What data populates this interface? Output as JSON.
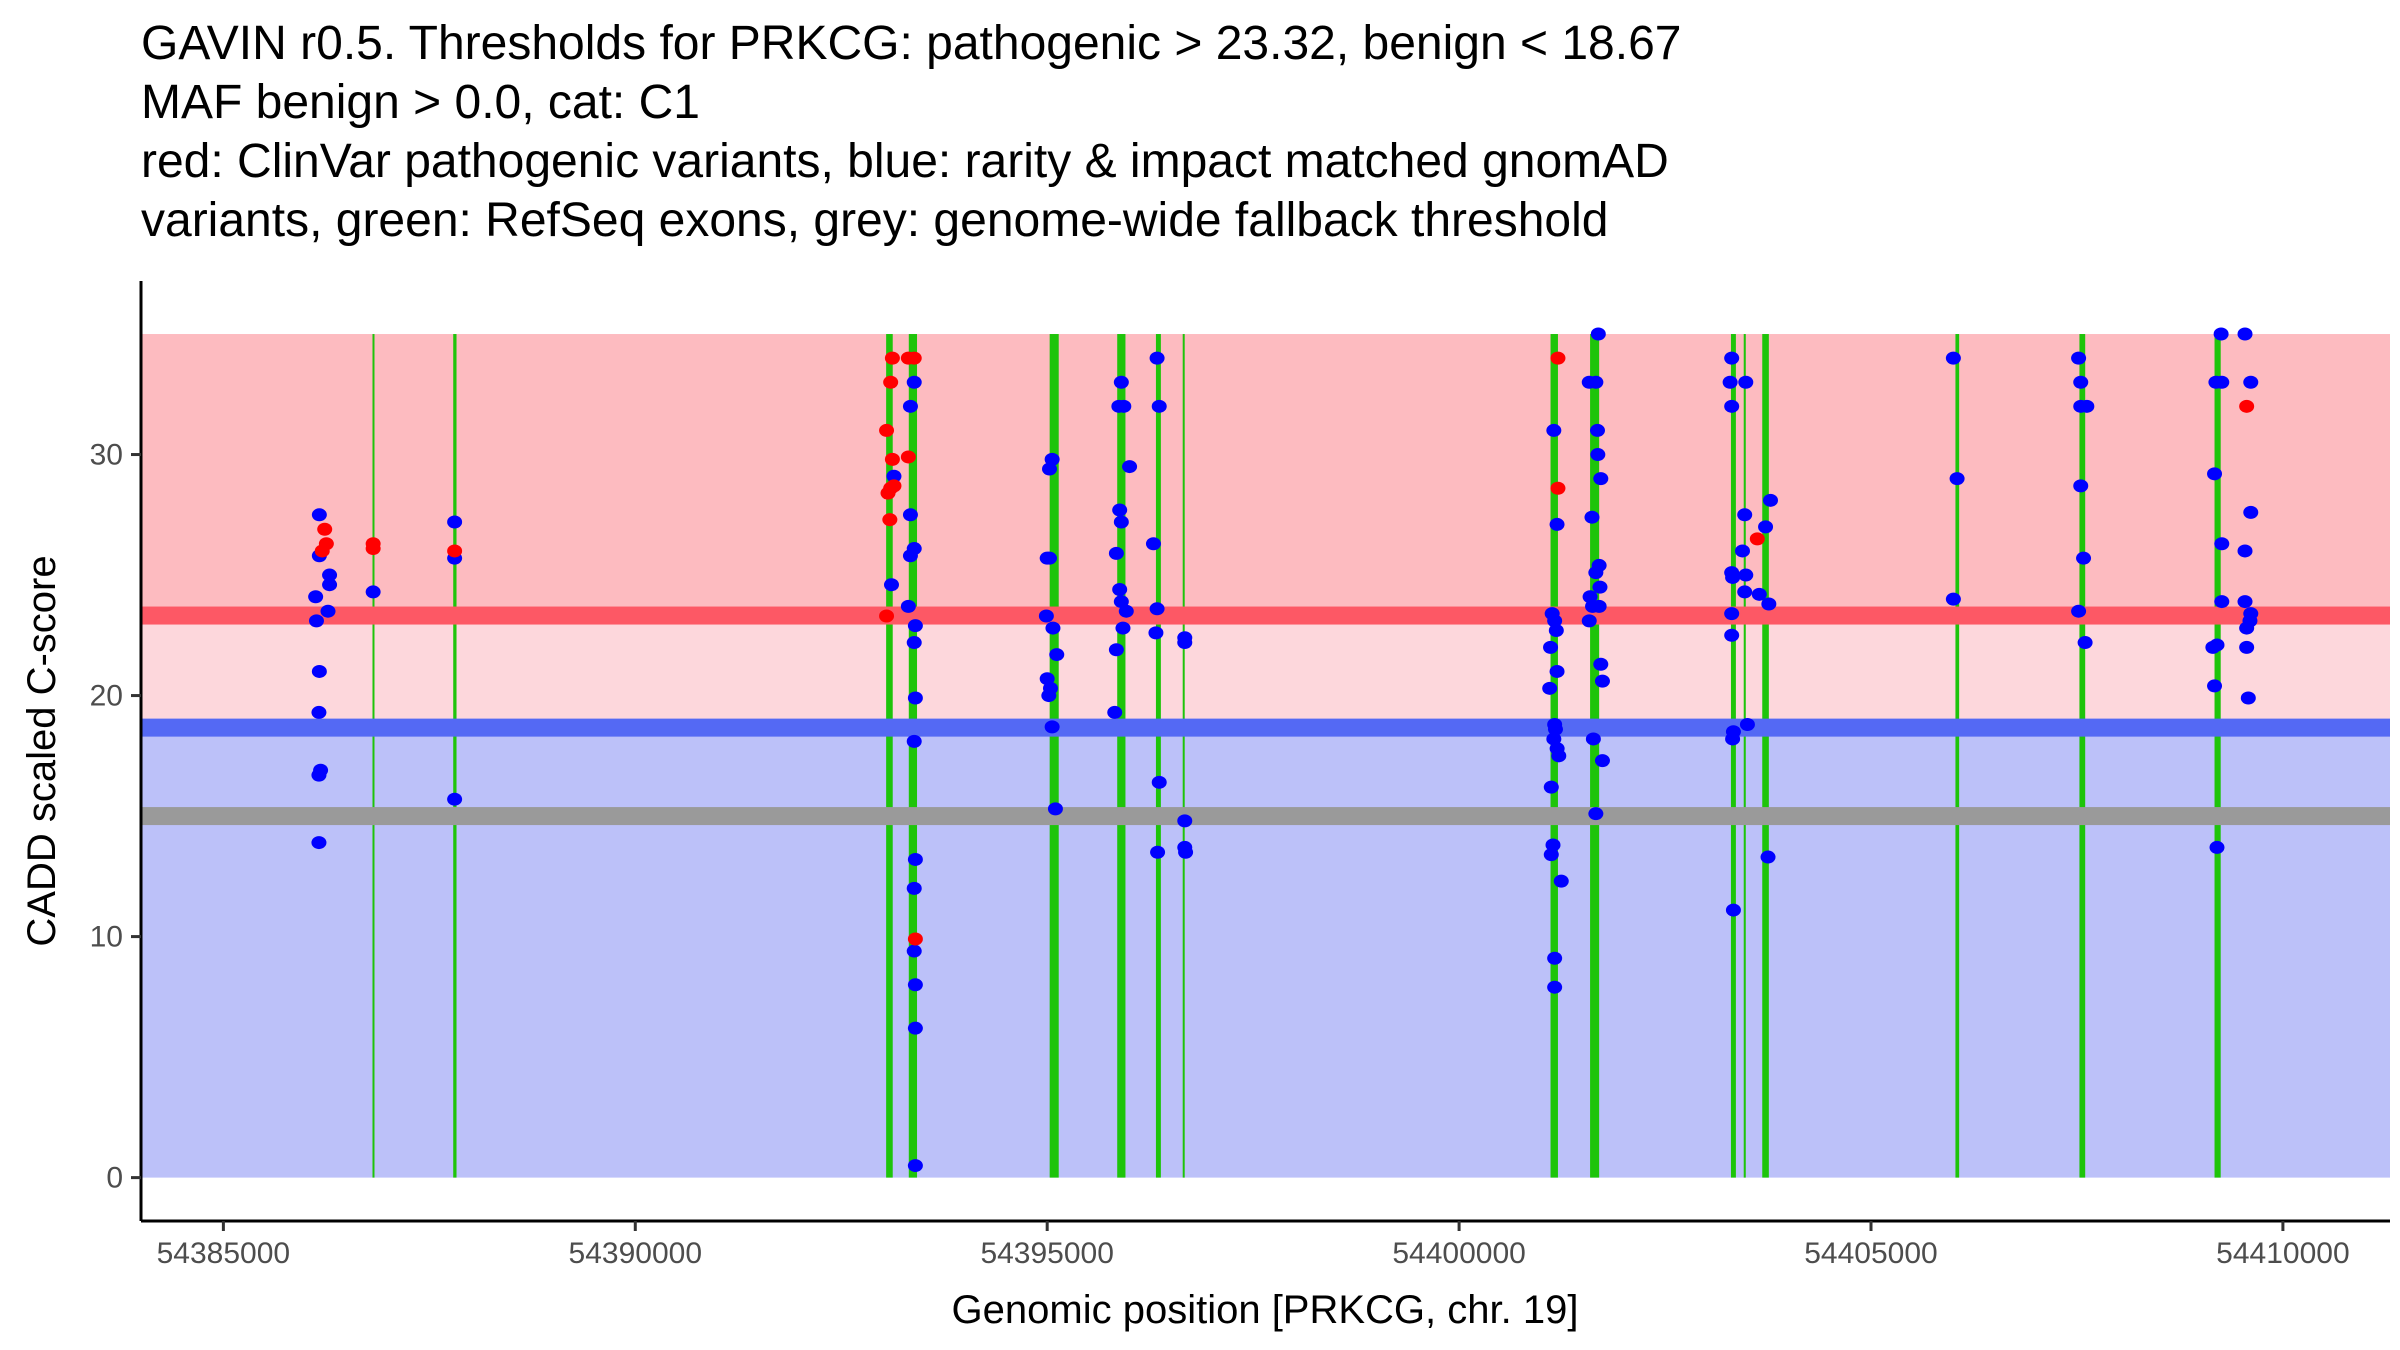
{
  "title_lines": [
    "GAVIN r0.5. Thresholds for PRKCG: pathogenic > 23.32, benign < 18.67",
    "MAF benign > 0.0, cat: C1",
    "red: ClinVar pathogenic variants, blue: rarity & impact matched gnomAD",
    "variants, green: RefSeq exons, grey: genome-wide fallback threshold"
  ],
  "chart_data": {
    "type": "scatter",
    "xlabel": "Genomic position [PRKCG, chr. 19]",
    "ylabel": "CADD scaled C-score",
    "xlim": [
      54384000,
      54411300
    ],
    "ylim": [
      -1.8,
      37.2
    ],
    "xticks": [
      54385000,
      54390000,
      54395000,
      54400000,
      54405000,
      54410000
    ],
    "xtick_labels": [
      "54385000",
      "54390000",
      "54395000",
      "54400000",
      "54405000",
      "54410000"
    ],
    "yticks": [
      0,
      10,
      20,
      30
    ],
    "ytick_labels": [
      "0",
      "10",
      "20",
      "30"
    ],
    "grid": false,
    "thresholds": {
      "pathogenic": 23.32,
      "benign": 18.67,
      "fallback": 15.0,
      "max": 35
    },
    "colors": {
      "pathogenic_region": "#fdbbc0",
      "middle_region": "#fdd7dc",
      "benign_region": "#bcc1f9",
      "pathogenic_line": "#fd5865",
      "benign_line": "#5469f4",
      "fallback_line": "#9a9a9a",
      "exon": "#1ec40a",
      "clinvar": "#ff0000",
      "gnomad": "#0000ff"
    },
    "exons": [
      [
        54386810,
        54386825
      ],
      [
        54387790,
        54387830
      ],
      [
        54393045,
        54393125
      ],
      [
        54393320,
        54393420
      ],
      [
        54395030,
        54395140
      ],
      [
        54395850,
        54395950
      ],
      [
        54396320,
        54396380
      ],
      [
        54396645,
        54396660
      ],
      [
        54401110,
        54401200
      ],
      [
        54401590,
        54401700
      ],
      [
        54403300,
        54403360
      ],
      [
        54403455,
        54403480
      ],
      [
        54403680,
        54403760
      ],
      [
        54406025,
        54406070
      ],
      [
        54407530,
        54407600
      ],
      [
        54409170,
        54409245
      ]
    ],
    "series": [
      {
        "name": "ClinVar pathogenic",
        "points": [
          [
            54386230,
            26.9
          ],
          [
            54386250,
            26.3
          ],
          [
            54386200,
            26.0
          ],
          [
            54386818,
            26.3
          ],
          [
            54386818,
            26.1
          ],
          [
            54387807,
            26.0
          ],
          [
            54393121,
            34.0
          ],
          [
            54393100,
            33.0
          ],
          [
            54393050,
            31.0
          ],
          [
            54393121,
            29.8
          ],
          [
            54393068,
            28.4
          ],
          [
            54393100,
            28.6
          ],
          [
            54393140,
            28.7
          ],
          [
            54393090,
            27.3
          ],
          [
            54393050,
            23.3
          ],
          [
            54393315,
            34.0
          ],
          [
            54393386,
            34.0
          ],
          [
            54393315,
            29.9
          ],
          [
            54393400,
            9.9
          ],
          [
            54401200,
            34.0
          ],
          [
            54401200,
            28.6
          ],
          [
            54403620,
            26.5
          ],
          [
            54409560,
            32.0
          ]
        ]
      },
      {
        "name": "gnomAD matched",
        "points": [
          [
            54386165,
            27.5
          ],
          [
            54386165,
            25.8
          ],
          [
            54386120,
            24.1
          ],
          [
            54386130,
            23.1
          ],
          [
            54386165,
            21.0
          ],
          [
            54386160,
            19.3
          ],
          [
            54386180,
            16.9
          ],
          [
            54386160,
            16.7
          ],
          [
            54386160,
            13.9
          ],
          [
            54386289,
            25.0
          ],
          [
            54386289,
            24.6
          ],
          [
            54386270,
            23.5
          ],
          [
            54386818,
            24.3
          ],
          [
            54387807,
            27.2
          ],
          [
            54387807,
            25.7
          ],
          [
            54387807,
            15.7
          ],
          [
            54393140,
            29.1
          ],
          [
            54393110,
            24.6
          ],
          [
            54393386,
            33.0
          ],
          [
            54393340,
            32.0
          ],
          [
            54393340,
            27.5
          ],
          [
            54393386,
            26.1
          ],
          [
            54393340,
            25.8
          ],
          [
            54393315,
            23.7
          ],
          [
            54393400,
            22.9
          ],
          [
            54393386,
            22.2
          ],
          [
            54393400,
            19.9
          ],
          [
            54393386,
            18.1
          ],
          [
            54393400,
            13.2
          ],
          [
            54393386,
            12.0
          ],
          [
            54393386,
            9.4
          ],
          [
            54393400,
            8.0
          ],
          [
            54393400,
            6.2
          ],
          [
            54393400,
            0.5
          ],
          [
            54395028,
            29.4
          ],
          [
            54395060,
            29.8
          ],
          [
            54395000,
            25.7
          ],
          [
            54395028,
            25.7
          ],
          [
            54394990,
            23.3
          ],
          [
            54395070,
            22.8
          ],
          [
            54395116,
            21.7
          ],
          [
            54395000,
            20.7
          ],
          [
            54395040,
            20.3
          ],
          [
            54395020,
            20.0
          ],
          [
            54395060,
            18.7
          ],
          [
            54395100,
            15.3
          ],
          [
            54395900,
            33.0
          ],
          [
            54395870,
            32.0
          ],
          [
            54395930,
            32.0
          ],
          [
            54395880,
            27.7
          ],
          [
            54395900,
            27.2
          ],
          [
            54395840,
            25.9
          ],
          [
            54395880,
            24.4
          ],
          [
            54395900,
            23.9
          ],
          [
            54395960,
            23.5
          ],
          [
            54395920,
            22.8
          ],
          [
            54395840,
            21.9
          ],
          [
            54395820,
            19.3
          ],
          [
            54396000,
            29.5
          ],
          [
            54396334,
            34.0
          ],
          [
            54396360,
            32.0
          ],
          [
            54396290,
            26.3
          ],
          [
            54396334,
            23.6
          ],
          [
            54396320,
            22.6
          ],
          [
            54396360,
            16.4
          ],
          [
            54396340,
            13.5
          ],
          [
            54396670,
            22.4
          ],
          [
            54396670,
            22.2
          ],
          [
            54396670,
            14.8
          ],
          [
            54396670,
            13.7
          ],
          [
            54396680,
            13.5
          ],
          [
            54401150,
            31.0
          ],
          [
            54401130,
            23.4
          ],
          [
            54401160,
            23.1
          ],
          [
            54401180,
            22.7
          ],
          [
            54401110,
            22.0
          ],
          [
            54401189,
            21.0
          ],
          [
            54401100,
            20.3
          ],
          [
            54401160,
            18.8
          ],
          [
            54401170,
            18.6
          ],
          [
            54401150,
            18.2
          ],
          [
            54401190,
            17.8
          ],
          [
            54401210,
            17.5
          ],
          [
            54401119,
            16.2
          ],
          [
            54401140,
            13.8
          ],
          [
            54401119,
            13.4
          ],
          [
            54401160,
            9.1
          ],
          [
            54401160,
            7.9
          ],
          [
            54401189,
            27.1
          ],
          [
            54401240,
            12.3
          ],
          [
            54401690,
            35.0
          ],
          [
            54401580,
            33.0
          ],
          [
            54401660,
            33.0
          ],
          [
            54401680,
            31.0
          ],
          [
            54401684,
            30.0
          ],
          [
            54401720,
            29.0
          ],
          [
            54401613,
            27.4
          ],
          [
            54401700,
            25.4
          ],
          [
            54401660,
            25.1
          ],
          [
            54401710,
            24.5
          ],
          [
            54401590,
            24.1
          ],
          [
            54401620,
            23.7
          ],
          [
            54401700,
            23.7
          ],
          [
            54401580,
            23.1
          ],
          [
            54401720,
            21.3
          ],
          [
            54401740,
            20.6
          ],
          [
            54401630,
            18.2
          ],
          [
            54401740,
            17.3
          ],
          [
            54401660,
            15.1
          ],
          [
            54403309,
            34.0
          ],
          [
            54403290,
            33.0
          ],
          [
            54403309,
            32.0
          ],
          [
            54403309,
            25.1
          ],
          [
            54403320,
            24.9
          ],
          [
            54403309,
            23.4
          ],
          [
            54403309,
            22.5
          ],
          [
            54403330,
            18.5
          ],
          [
            54403320,
            18.2
          ],
          [
            54403330,
            11.1
          ],
          [
            54403480,
            33.0
          ],
          [
            54403467,
            27.5
          ],
          [
            54403440,
            26.0
          ],
          [
            54403480,
            25.0
          ],
          [
            54403467,
            24.3
          ],
          [
            54403500,
            18.8
          ],
          [
            54403780,
            28.1
          ],
          [
            54403644,
            24.2
          ],
          [
            54403760,
            23.8
          ],
          [
            54403750,
            13.3
          ],
          [
            54403720,
            27.0
          ],
          [
            54406000,
            34.0
          ],
          [
            54406045,
            29.0
          ],
          [
            54406000,
            24.0
          ],
          [
            54407520,
            34.0
          ],
          [
            54407546,
            33.0
          ],
          [
            54407546,
            32.0
          ],
          [
            54407620,
            32.0
          ],
          [
            54407546,
            28.7
          ],
          [
            54407580,
            25.7
          ],
          [
            54407520,
            23.5
          ],
          [
            54407599,
            22.2
          ],
          [
            54409250,
            35.0
          ],
          [
            54409187,
            33.0
          ],
          [
            54409258,
            33.0
          ],
          [
            54409170,
            29.2
          ],
          [
            54409258,
            26.3
          ],
          [
            54409258,
            23.9
          ],
          [
            54409150,
            22.0
          ],
          [
            54409200,
            22.1
          ],
          [
            54409170,
            20.4
          ],
          [
            54409200,
            13.7
          ],
          [
            54409540,
            35.0
          ],
          [
            54409610,
            33.0
          ],
          [
            54409610,
            27.6
          ],
          [
            54409540,
            26.0
          ],
          [
            54409540,
            23.9
          ],
          [
            54409610,
            23.4
          ],
          [
            54409600,
            23.1
          ],
          [
            54409560,
            22.8
          ],
          [
            54409560,
            22.0
          ],
          [
            54409580,
            19.9
          ]
        ]
      }
    ]
  }
}
